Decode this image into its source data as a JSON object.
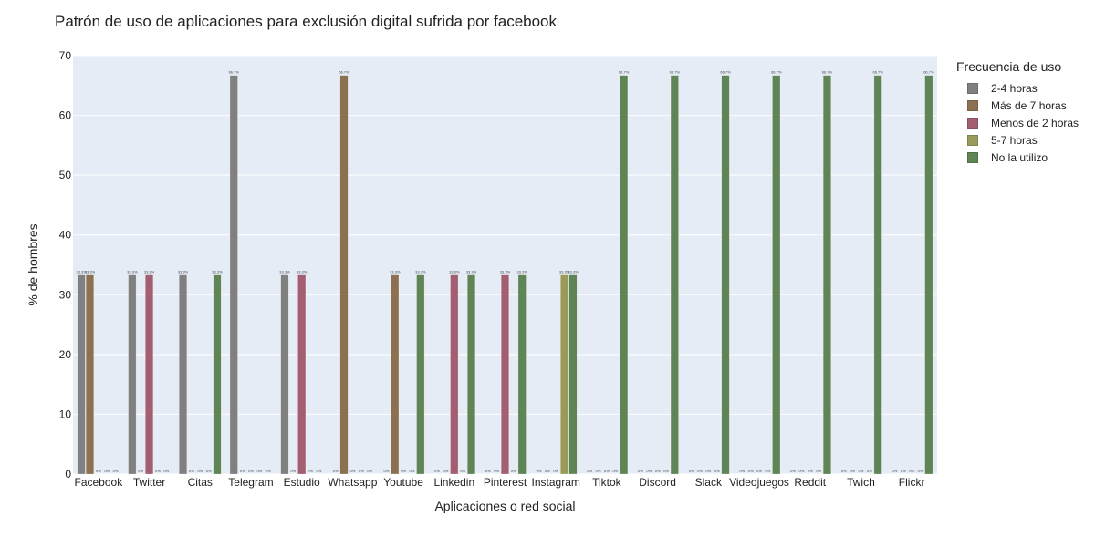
{
  "chart_data": {
    "type": "bar",
    "title": "Patrón de uso de aplicaciones para exclusión digital sufrida por facebook",
    "xlabel": "Aplicaciones o red social",
    "ylabel": "% de hombres",
    "ylim": [
      0,
      70
    ],
    "yticks": [
      0,
      10,
      20,
      30,
      40,
      50,
      60,
      70
    ],
    "grid": true,
    "legend_title": "Frecuencia de uso",
    "legend_position": "right",
    "categories": [
      "Facebook",
      "Twitter",
      "Citas",
      "Telegram",
      "Estudio",
      "Whatsapp",
      "Youtube",
      "Linkedin",
      "Pinterest",
      "Instagram",
      "Tiktok",
      "Discord",
      "Slack",
      "Videojuegos",
      "Reddit",
      "Twich",
      "Flickr"
    ],
    "series": [
      {
        "name": "2-4 horas",
        "color": "#808080",
        "values": [
          33.3,
          33.3,
          33.3,
          66.7,
          33.3,
          0,
          0,
          0,
          0,
          0,
          0,
          0,
          0,
          0,
          0,
          0,
          0
        ]
      },
      {
        "name": "Más de 7 horas",
        "color": "#8c7150",
        "values": [
          33.3,
          0,
          0,
          0,
          0,
          66.7,
          33.3,
          0,
          0,
          0,
          0,
          0,
          0,
          0,
          0,
          0,
          0
        ]
      },
      {
        "name": "Menos de 2 horas",
        "color": "#a35e72",
        "values": [
          0,
          33.3,
          0,
          0,
          33.3,
          0,
          0,
          33.3,
          33.3,
          0,
          0,
          0,
          0,
          0,
          0,
          0,
          0
        ]
      },
      {
        "name": "5-7 horas",
        "color": "#9a9a5a",
        "values": [
          0,
          0,
          0,
          0,
          0,
          0,
          0,
          0,
          0,
          33.3,
          0,
          0,
          0,
          0,
          0,
          0,
          0
        ]
      },
      {
        "name": "No la utilizo",
        "color": "#5f8455",
        "values": [
          0,
          0,
          33.3,
          0,
          0,
          0,
          33.3,
          33.3,
          33.3,
          33.3,
          66.7,
          66.7,
          66.7,
          66.7,
          66.7,
          66.7,
          66.7
        ]
      }
    ]
  }
}
